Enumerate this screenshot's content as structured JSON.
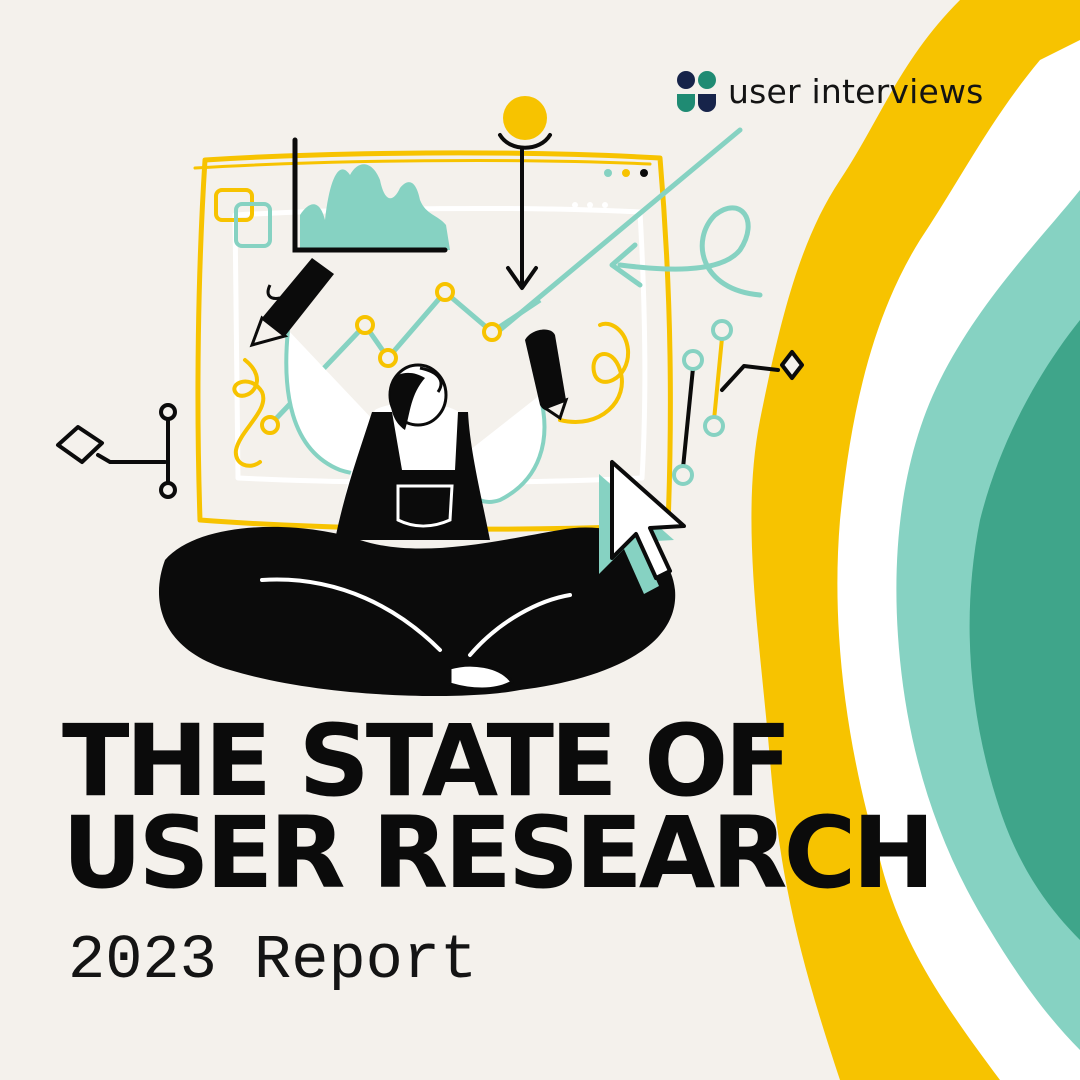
{
  "brand": {
    "name": "user interviews",
    "colors": {
      "navy": "#17244a",
      "teal": "#1f8b73"
    }
  },
  "title": {
    "line1": "THE STATE OF",
    "line2": "USER RESEARCH"
  },
  "subtitle": "2023 Report",
  "palette": {
    "background": "#f4f1ec",
    "yellow": "#f7c300",
    "mint": "#86d2c2",
    "green": "#3fa58a",
    "black": "#0b0b0b"
  }
}
